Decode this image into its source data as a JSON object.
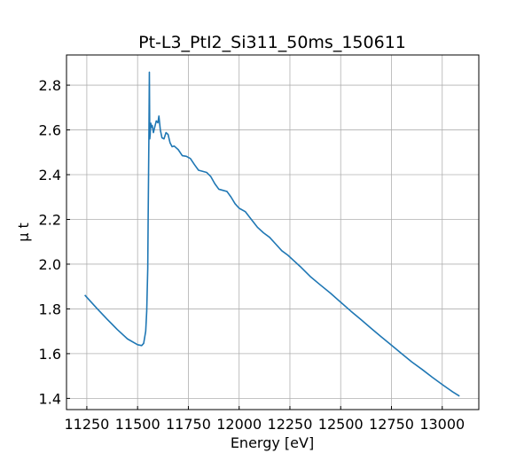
{
  "chart_data": {
    "type": "line",
    "title": "Pt-L3_PtI2_Si311_50ms_150611",
    "xlabel": "Energy [eV]",
    "ylabel": "μ t",
    "xlim": [
      11150,
      13180
    ],
    "ylim": [
      1.35,
      2.935
    ],
    "xticks": [
      11250,
      11500,
      11750,
      12000,
      12250,
      12500,
      12750,
      13000
    ],
    "yticks": [
      1.4,
      1.6,
      1.8,
      2.0,
      2.2,
      2.4,
      2.6,
      2.8
    ],
    "ytick_labels": [
      "1.4",
      "1.6",
      "1.8",
      "2.0",
      "2.2",
      "2.4",
      "2.6",
      "2.8"
    ],
    "grid": true,
    "series_color": "#1f77b4",
    "series": [
      {
        "x": [
          11240,
          11300,
          11350,
          11400,
          11450,
          11500,
          11520,
          11530,
          11540,
          11545,
          11550,
          11552,
          11554,
          11556,
          11558,
          11560,
          11562,
          11565,
          11568,
          11572,
          11578,
          11585,
          11592,
          11600,
          11605,
          11612,
          11620,
          11630,
          11640,
          11650,
          11660,
          11670,
          11680,
          11700,
          11720,
          11740,
          11760,
          11780,
          11800,
          11820,
          11840,
          11860,
          11880,
          11900,
          11920,
          11940,
          11960,
          11980,
          12000,
          12030,
          12060,
          12090,
          12120,
          12150,
          12180,
          12210,
          12240,
          12270,
          12300,
          12350,
          12400,
          12450,
          12500,
          12550,
          12600,
          12650,
          12700,
          12750,
          12800,
          12850,
          12900,
          12950,
          13000,
          13050,
          13085
        ],
        "y": [
          1.862,
          1.802,
          1.754,
          1.708,
          1.666,
          1.64,
          1.636,
          1.646,
          1.7,
          1.79,
          1.98,
          2.2,
          2.4,
          2.6,
          2.858,
          2.56,
          2.58,
          2.63,
          2.612,
          2.62,
          2.588,
          2.615,
          2.64,
          2.632,
          2.662,
          2.6,
          2.565,
          2.56,
          2.588,
          2.58,
          2.542,
          2.525,
          2.528,
          2.512,
          2.485,
          2.482,
          2.472,
          2.445,
          2.42,
          2.415,
          2.41,
          2.392,
          2.36,
          2.335,
          2.33,
          2.325,
          2.3,
          2.27,
          2.25,
          2.235,
          2.2,
          2.165,
          2.14,
          2.12,
          2.09,
          2.06,
          2.04,
          2.015,
          1.99,
          1.945,
          1.907,
          1.87,
          1.83,
          1.79,
          1.752,
          1.713,
          1.675,
          1.638,
          1.6,
          1.563,
          1.53,
          1.495,
          1.462,
          1.43,
          1.41
        ]
      }
    ]
  }
}
